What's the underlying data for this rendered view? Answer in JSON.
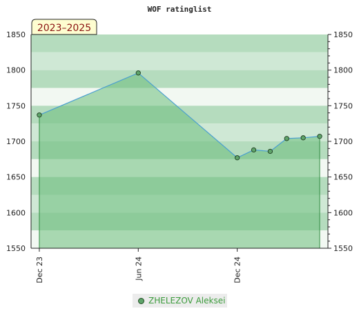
{
  "chart_data": {
    "type": "area",
    "title": "WOF ratinglist",
    "period_badge": "2023–2025",
    "ylim": [
      1550,
      1850
    ],
    "y_ticks": [
      1550,
      1600,
      1650,
      1700,
      1750,
      1800,
      1850
    ],
    "x_ticks": [
      {
        "label": "Dec 23",
        "month": 0
      },
      {
        "label": "Jun 24",
        "month": 6
      },
      {
        "label": "Dec 24",
        "month": 12
      }
    ],
    "series": [
      {
        "name": "ZHELEZOV Aleksei",
        "points": [
          {
            "month": 0,
            "value": 1737
          },
          {
            "month": 6,
            "value": 1796
          },
          {
            "month": 12,
            "value": 1677
          },
          {
            "month": 13,
            "value": 1688
          },
          {
            "month": 14,
            "value": 1686
          },
          {
            "month": 15,
            "value": 1704
          },
          {
            "month": 16,
            "value": 1705
          },
          {
            "month": 17,
            "value": 1707
          }
        ]
      }
    ],
    "colors": {
      "line": "#4a9fd0",
      "marker": "#5fa46a",
      "area": "#6bbd7b",
      "band_light": "#f2f8f2",
      "band_dark": "#b5dcbe"
    }
  }
}
